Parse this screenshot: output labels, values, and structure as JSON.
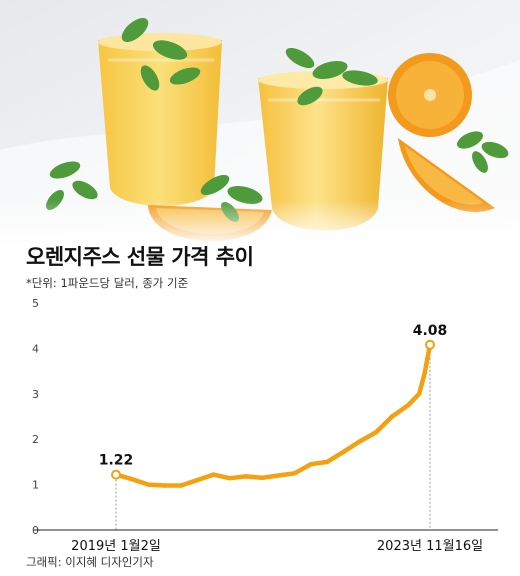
{
  "chart_data": {
    "type": "line",
    "title": "오렌지주스 선물 가격 추이",
    "subtitle": "*단위: 1파운드당 달러, 종가 기준",
    "ylim": [
      0,
      5
    ],
    "y_ticks": [
      "0",
      "1",
      "2",
      "3",
      "4",
      "5"
    ],
    "x_ticks": [
      "2019년 1월2일",
      "2023년 11월16일"
    ],
    "grid": false,
    "color": "#f5a00e",
    "series": [
      {
        "x": [
          "2019-01",
          "2019-04",
          "2019-07",
          "2019-10",
          "2020-01",
          "2020-04",
          "2020-07",
          "2020-10",
          "2021-01",
          "2021-04",
          "2021-07",
          "2021-10",
          "2022-01",
          "2022-04",
          "2022-07",
          "2022-10",
          "2023-01",
          "2023-04",
          "2023-07",
          "2023-09",
          "2023-10",
          "2023-11"
        ],
        "values": [
          1.22,
          1.12,
          1.0,
          0.98,
          0.98,
          1.1,
          1.22,
          1.14,
          1.18,
          1.15,
          1.2,
          1.25,
          1.45,
          1.5,
          1.72,
          1.95,
          2.15,
          2.5,
          2.75,
          3.0,
          3.45,
          4.08
        ]
      }
    ],
    "annotations": [
      {
        "label": "1.22",
        "x": "2019-01",
        "y": 1.22
      },
      {
        "label": "4.08",
        "x": "2023-11",
        "y": 4.08
      }
    ]
  },
  "credit": "그래픽: 이지혜 디자인기자"
}
